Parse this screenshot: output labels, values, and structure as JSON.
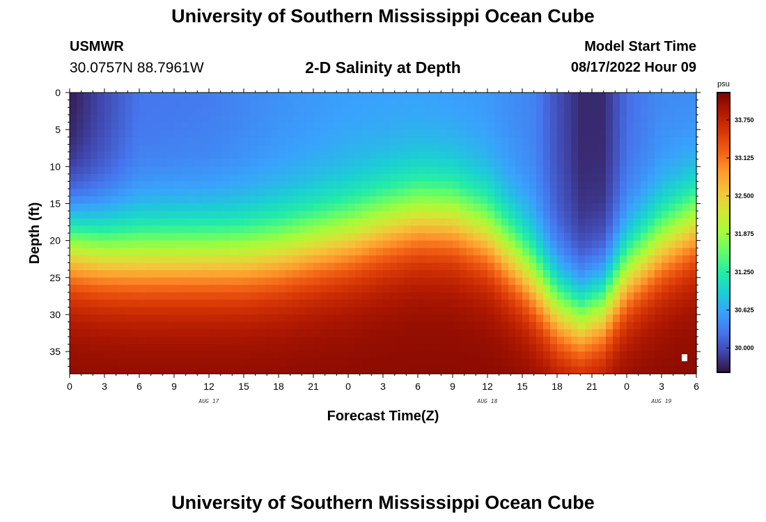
{
  "page": {
    "title": "University of Southern Mississippi Ocean Cube",
    "footer_title": "University of Southern Mississippi Ocean Cube",
    "station": "USMWR",
    "coordinates": "30.0757N  88.7961W",
    "model_start_label": "Model Start Time",
    "model_start_value": "08/17/2022 Hour 09"
  },
  "chart_data": {
    "type": "heatmap",
    "title": "2-D Salinity at Depth",
    "xlabel": "Forecast Time(Z)",
    "ylabel": "Depth (ft)",
    "x_tick_labels": [
      "0",
      "3",
      "6",
      "9",
      "12",
      "15",
      "18",
      "21",
      "0",
      "3",
      "6",
      "9",
      "12",
      "15",
      "18",
      "21",
      "0",
      "3",
      "6"
    ],
    "x_range_hours": [
      0,
      54
    ],
    "date_labels": [
      {
        "text": "AUG 17",
        "hour": 12
      },
      {
        "text": "AUG 18",
        "hour": 36
      },
      {
        "text": "AUG 19",
        "hour": 51
      }
    ],
    "y_ticks": [
      0,
      5,
      10,
      15,
      20,
      25,
      30,
      35
    ],
    "y_range": [
      0,
      38
    ],
    "y_inverted": true,
    "colorbar": {
      "unit": "psu",
      "tick_values": [
        30.0,
        30.625,
        31.25,
        31.875,
        32.5,
        33.125,
        33.75
      ],
      "tick_labels": [
        "30.000",
        "30.625",
        "31.250",
        "31.875",
        "32.500",
        "33.125",
        "33.750"
      ],
      "range": [
        29.6,
        34.2
      ],
      "colormap": [
        "#30123b",
        "#4145ab",
        "#4675ed",
        "#39a2fc",
        "#1bcfd4",
        "#24eca6",
        "#61fc6c",
        "#a4fc3b",
        "#d1e834",
        "#f3c63a",
        "#fe9b2d",
        "#f36315",
        "#d93806",
        "#b11901",
        "#7a0402"
      ]
    },
    "surface_salinity_by_hour": [
      [
        0,
        29.65
      ],
      [
        6,
        30.25
      ],
      [
        12,
        30.3
      ],
      [
        18,
        30.45
      ],
      [
        24,
        30.55
      ],
      [
        30,
        30.55
      ],
      [
        36,
        30.5
      ],
      [
        40,
        30.35
      ],
      [
        42,
        30.0
      ],
      [
        44,
        29.75
      ],
      [
        46,
        29.75
      ],
      [
        48,
        30.2
      ],
      [
        51,
        30.4
      ],
      [
        54,
        30.4
      ]
    ],
    "halocline_depth_ft_by_hour": [
      [
        0,
        20.5
      ],
      [
        3,
        21.5
      ],
      [
        6,
        22.0
      ],
      [
        9,
        22.0
      ],
      [
        12,
        22.0
      ],
      [
        15,
        22.0
      ],
      [
        18,
        21.5
      ],
      [
        21,
        20.5
      ],
      [
        24,
        19.5
      ],
      [
        27,
        18.0
      ],
      [
        30,
        16.8
      ],
      [
        33,
        17.0
      ],
      [
        36,
        19.0
      ],
      [
        39,
        23.5
      ],
      [
        42,
        29.0
      ],
      [
        44,
        30.5
      ],
      [
        46,
        29.0
      ],
      [
        48,
        24.5
      ],
      [
        51,
        20.5
      ],
      [
        54,
        17.5
      ]
    ],
    "bottom_salinity": 34.1,
    "grid": false
  }
}
